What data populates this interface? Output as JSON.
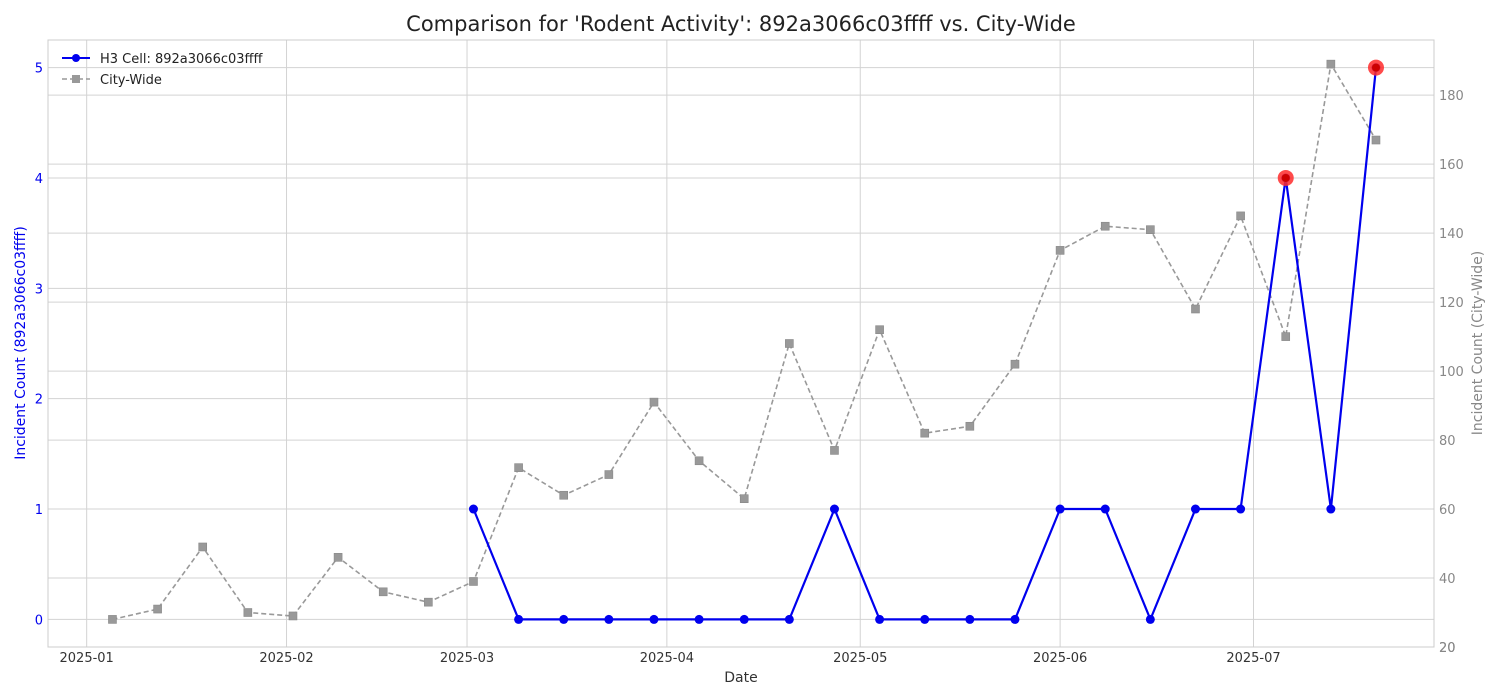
{
  "chart_data": {
    "type": "line",
    "title": "Comparison for 'Rodent Activity': 892a3066c03ffff vs. City-Wide",
    "xlabel": "Date",
    "ylabel_left": "Incident Count (892a3066c03ffff)",
    "ylabel_right": "Incident Count (City-Wide)",
    "x_ticks": [
      "2025-01",
      "2025-02",
      "2025-03",
      "2025-04",
      "2025-05",
      "2025-06",
      "2025-07"
    ],
    "y_left_ticks": [
      0,
      1,
      2,
      3,
      4,
      5
    ],
    "y_right_ticks": [
      20,
      40,
      60,
      80,
      100,
      120,
      140,
      160,
      180
    ],
    "ylim_left": [
      -0.25,
      5.25
    ],
    "ylim_right": [
      20,
      196
    ],
    "xlim": [
      "2024-12-26",
      "2025-07-29"
    ],
    "grid": true,
    "legend_position": "top-left",
    "series": [
      {
        "name": "H3 Cell: 892a3066c03ffff",
        "axis": "left",
        "color": "#0000ee",
        "marker": "circle",
        "x": [
          "2025-03-02",
          "2025-03-09",
          "2025-03-16",
          "2025-03-23",
          "2025-03-30",
          "2025-04-06",
          "2025-04-13",
          "2025-04-20",
          "2025-04-27",
          "2025-05-04",
          "2025-05-11",
          "2025-05-18",
          "2025-05-25",
          "2025-06-01",
          "2025-06-08",
          "2025-06-15",
          "2025-06-22",
          "2025-06-29",
          "2025-07-06",
          "2025-07-13",
          "2025-07-20"
        ],
        "values": [
          1,
          0,
          0,
          0,
          0,
          0,
          0,
          0,
          1,
          0,
          0,
          0,
          0,
          1,
          1,
          0,
          1,
          1,
          4,
          1,
          5
        ]
      },
      {
        "name": "City-Wide",
        "axis": "right",
        "color": "#999999",
        "marker": "square",
        "x": [
          "2025-01-05",
          "2025-01-12",
          "2025-01-19",
          "2025-01-26",
          "2025-02-02",
          "2025-02-09",
          "2025-02-16",
          "2025-02-23",
          "2025-03-02",
          "2025-03-09",
          "2025-03-16",
          "2025-03-23",
          "2025-03-30",
          "2025-04-06",
          "2025-04-13",
          "2025-04-20",
          "2025-04-27",
          "2025-05-04",
          "2025-05-11",
          "2025-05-18",
          "2025-05-25",
          "2025-06-01",
          "2025-06-08",
          "2025-06-15",
          "2025-06-22",
          "2025-06-29",
          "2025-07-06",
          "2025-07-13",
          "2025-07-20"
        ],
        "values": [
          28,
          31,
          49,
          30,
          29,
          46,
          36,
          33,
          39,
          72,
          64,
          70,
          91,
          74,
          63,
          108,
          77,
          112,
          82,
          84,
          102,
          135,
          142,
          141,
          118,
          145,
          110,
          189,
          167
        ]
      }
    ],
    "highlighted_points": {
      "series": "H3 Cell: 892a3066c03ffff",
      "color": "#ff2a2a",
      "x": [
        "2025-07-06",
        "2025-07-20"
      ],
      "values": [
        4,
        5
      ]
    }
  }
}
